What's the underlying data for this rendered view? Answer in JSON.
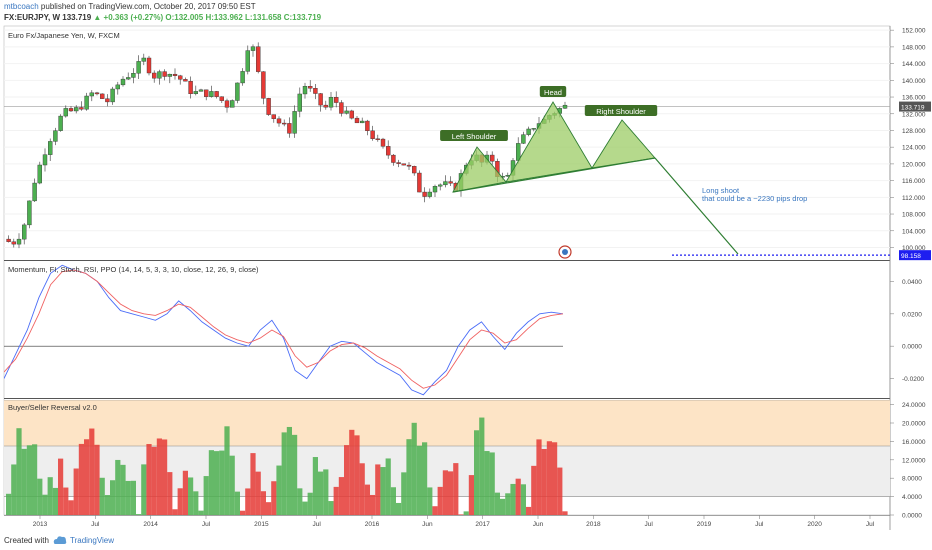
{
  "header": {
    "author": "mtbcoach",
    "published": "published on TradingView.com, October 20, 2017 09:50 EST",
    "symbol": "FX:EURJPY, W",
    "last": "133.719",
    "change": "▲ +0.363 (+0.27%)",
    "ohlc_o": "O:132.005",
    "ohlc_h": "H:133.962",
    "ohlc_l": "L:131.658",
    "ohlc_c": "C:133.719"
  },
  "footer": {
    "created_with": "Created with",
    "brand": "TradingView"
  },
  "colors": {
    "up": "#4caf50",
    "down": "#e53935",
    "pattern_fill": "#9ccc65",
    "pattern_stroke": "#2e7d32",
    "mom_line": "#4a6cf7",
    "mom_signal": "#f06262",
    "target_line": "#1e1ef0",
    "band_orange": "#fde4c6",
    "band_gray": "#eeeeee"
  },
  "chart_data": [
    {
      "type": "candlestick",
      "title": "Euro Fx/Japanese Yen, W, FXCM",
      "ylim": [
        97,
        153
      ],
      "y_ticks": [
        "100.000",
        "104.000",
        "108.000",
        "112.000",
        "116.000",
        "120.000",
        "124.000",
        "128.000",
        "132.000",
        "136.000",
        "140.000",
        "144.000",
        "148.000",
        "152.000"
      ],
      "x_ticks": [
        "2013",
        "Jul",
        "2014",
        "Jul",
        "2015",
        "Jul",
        "2016",
        "Jun",
        "2017",
        "Jun",
        "2018",
        "Jul",
        "2019",
        "Jul",
        "2020",
        "Jul"
      ],
      "x_anchor_points": [
        [
          0,
          102
        ],
        [
          10,
          101
        ],
        [
          20,
          104
        ],
        [
          32,
          116
        ],
        [
          45,
          125
        ],
        [
          60,
          132
        ],
        [
          75,
          133
        ],
        [
          90,
          137
        ],
        [
          105,
          135
        ],
        [
          118,
          140
        ],
        [
          130,
          142
        ],
        [
          142,
          145
        ],
        [
          150,
          141
        ],
        [
          162,
          142
        ],
        [
          175,
          141
        ],
        [
          190,
          137
        ],
        [
          205,
          137
        ],
        [
          215,
          136
        ],
        [
          225,
          134
        ],
        [
          232,
          137
        ],
        [
          240,
          143
        ],
        [
          246,
          149
        ],
        [
          252,
          147
        ],
        [
          258,
          138
        ],
        [
          265,
          133
        ],
        [
          272,
          131
        ],
        [
          280,
          129
        ],
        [
          288,
          128
        ],
        [
          295,
          136
        ],
        [
          303,
          139
        ],
        [
          312,
          136
        ],
        [
          322,
          133
        ],
        [
          330,
          136
        ],
        [
          342,
          132
        ],
        [
          352,
          130
        ],
        [
          362,
          129
        ],
        [
          372,
          126
        ],
        [
          382,
          123
        ],
        [
          392,
          121
        ],
        [
          402,
          120
        ],
        [
          410,
          118
        ],
        [
          416,
          114
        ],
        [
          422,
          113
        ],
        [
          430,
          115
        ],
        [
          442,
          115
        ],
        [
          452,
          114
        ],
        [
          458,
          117
        ],
        [
          465,
          121
        ],
        [
          472,
          122
        ],
        [
          480,
          120
        ],
        [
          488,
          122
        ],
        [
          496,
          117
        ],
        [
          504,
          116
        ],
        [
          512,
          123
        ],
        [
          520,
          126
        ],
        [
          528,
          128
        ],
        [
          534,
          130
        ],
        [
          540,
          130
        ],
        [
          548,
          132
        ],
        [
          556,
          133
        ],
        [
          562,
          133.7
        ]
      ],
      "annotations": [
        "Head",
        "Left Shoulder",
        "Right Shoulder",
        "Long shoot",
        "that could be a ~2230 pips drop"
      ],
      "last_price": "133.719",
      "target_price": "98.158"
    },
    {
      "type": "line",
      "title": "Momentum, FI, Stoch, RSI, PPO (14, 14, 5, 3, 3, 10, close, 12, 26, 9, close)",
      "ylim": [
        -0.032,
        0.052
      ],
      "y_ticks": [
        "0.0400",
        "0.0200",
        "0.0000",
        "-0.0200"
      ],
      "series": [
        {
          "values": [
            -0.02,
            -0.005,
            0.01,
            0.03,
            0.045,
            0.05,
            0.047,
            0.045,
            0.04,
            0.03,
            0.022,
            0.02,
            0.018,
            0.016,
            0.02,
            0.028,
            0.022,
            0.015,
            0.01,
            0.005,
            0.002,
            0.0,
            0.01,
            0.016,
            0.005,
            -0.015,
            -0.02,
            -0.01,
            0.0,
            0.003,
            0.002,
            -0.004,
            -0.01,
            -0.014,
            -0.018,
            -0.027,
            -0.03,
            -0.022,
            -0.015,
            0.0,
            0.01,
            0.015,
            0.006,
            -0.002,
            0.008,
            0.015,
            0.02,
            0.021,
            0.02
          ]
        },
        {
          "values": [
            -0.016,
            -0.008,
            0.005,
            0.02,
            0.038,
            0.046,
            0.047,
            0.045,
            0.04,
            0.033,
            0.026,
            0.022,
            0.02,
            0.019,
            0.022,
            0.026,
            0.024,
            0.018,
            0.012,
            0.007,
            0.004,
            0.002,
            0.005,
            0.01,
            0.006,
            -0.006,
            -0.013,
            -0.01,
            -0.003,
            0.001,
            0.002,
            -0.001,
            -0.006,
            -0.01,
            -0.014,
            -0.021,
            -0.026,
            -0.024,
            -0.018,
            -0.007,
            0.004,
            0.01,
            0.008,
            0.002,
            0.004,
            0.011,
            0.017,
            0.019,
            0.02
          ]
        }
      ]
    },
    {
      "type": "area",
      "title": "Buyer/Seller Reversal v2.0",
      "ylim": [
        0,
        25
      ],
      "y_ticks": [
        "24.0000",
        "20.0000",
        "16.0000",
        "12.0000",
        "8.0000",
        "4.0000",
        "0.0000"
      ],
      "bands": [
        4,
        15,
        25
      ]
    }
  ]
}
